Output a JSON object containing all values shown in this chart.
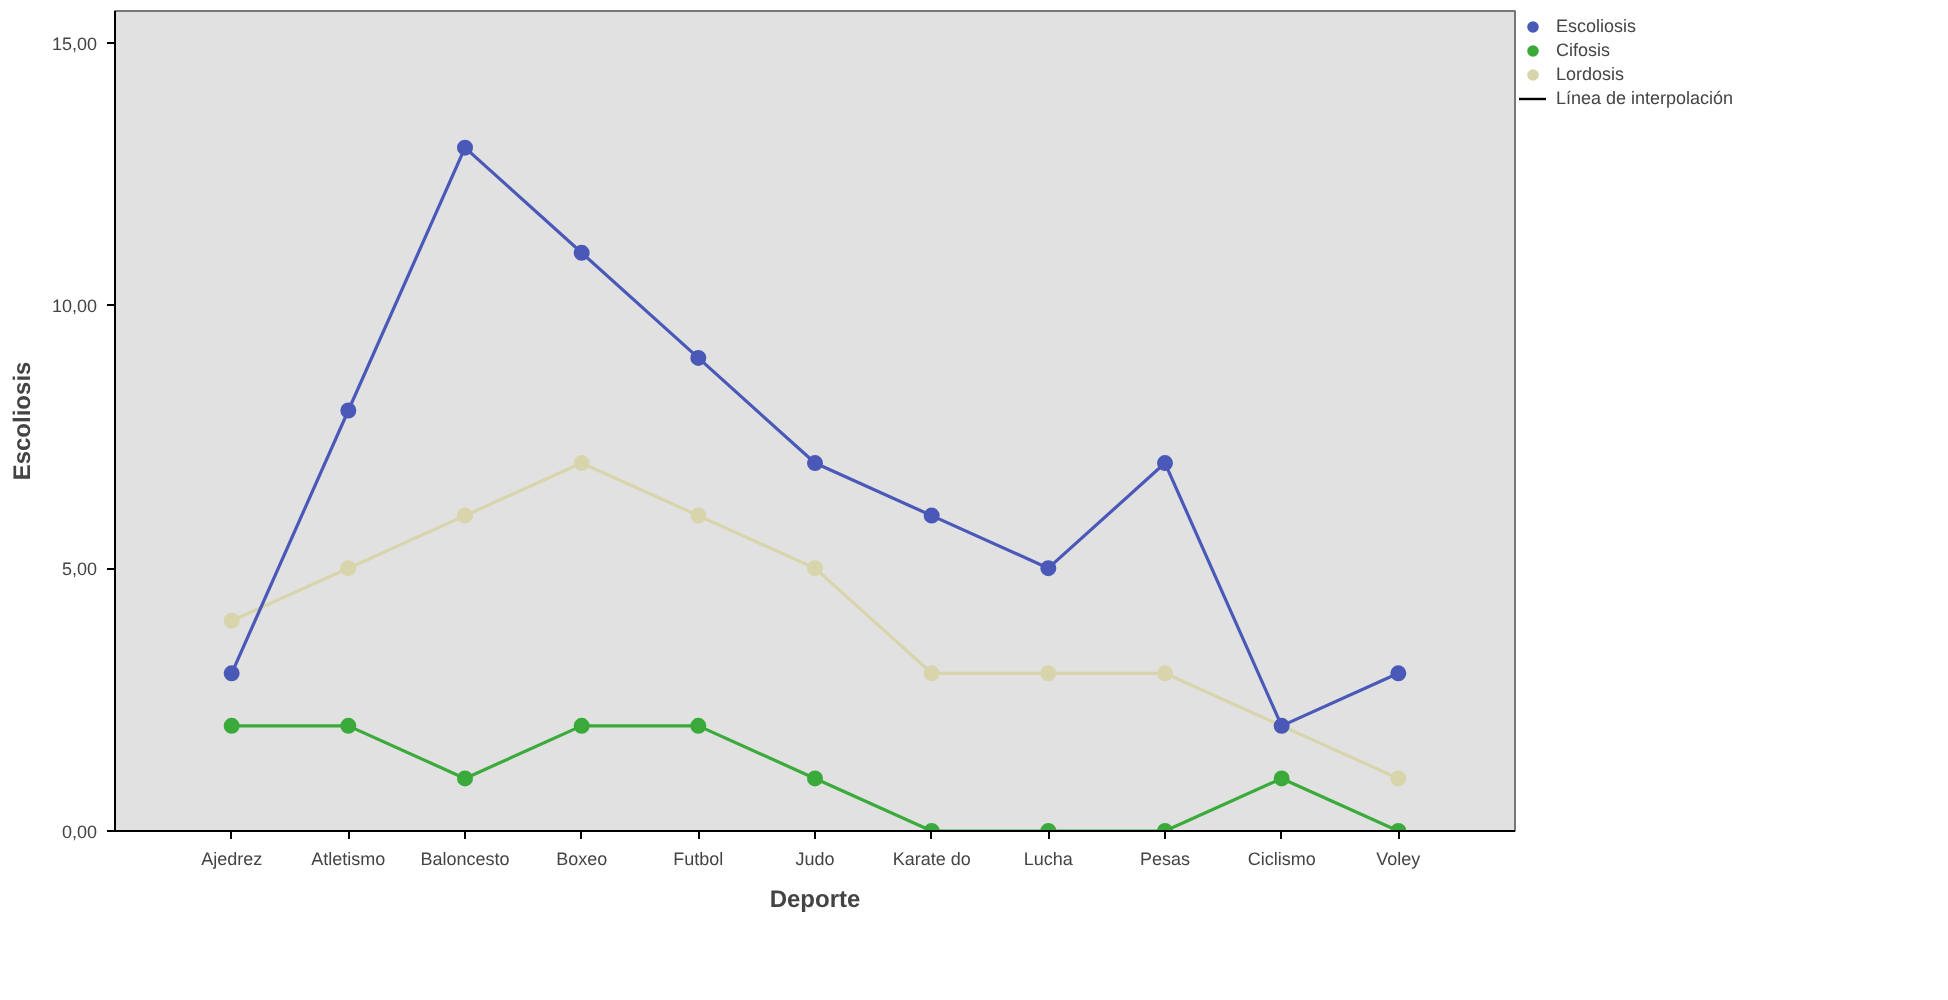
{
  "chart_data": {
    "type": "line",
    "xlabel": "Deporte",
    "ylabel": "Escoliosis",
    "categories": [
      "Ajedrez",
      "Atletismo",
      "Baloncesto",
      "Boxeo",
      "Futbol",
      "Judo",
      "Karate do",
      "Lucha",
      "Pesas",
      "Ciclismo",
      "Voley"
    ],
    "series": [
      {
        "name": "Escoliosis",
        "color": "#4a58b8",
        "values": [
          3,
          8,
          13,
          11,
          9,
          7,
          6,
          5,
          7,
          2,
          3
        ]
      },
      {
        "name": "Cifosis",
        "color": "#3aaa3a",
        "values": [
          2,
          2,
          1,
          2,
          2,
          1,
          0,
          0,
          0,
          1,
          0
        ]
      },
      {
        "name": "Lordosis",
        "color": "#d8d5ac",
        "values": [
          4,
          5,
          6,
          7,
          6,
          5,
          3,
          3,
          3,
          2,
          1
        ]
      }
    ],
    "annotations": [
      "Línea de interpolación"
    ],
    "ylim": [
      0,
      15.6
    ],
    "yticks": [
      {
        "value": 0,
        "label": "0,00"
      },
      {
        "value": 5,
        "label": "5,00"
      },
      {
        "value": 10,
        "label": "10,00"
      },
      {
        "value": 15,
        "label": "15,00"
      }
    ],
    "grid": false,
    "legend": "right",
    "marker": "circle",
    "line_style": "solid"
  }
}
